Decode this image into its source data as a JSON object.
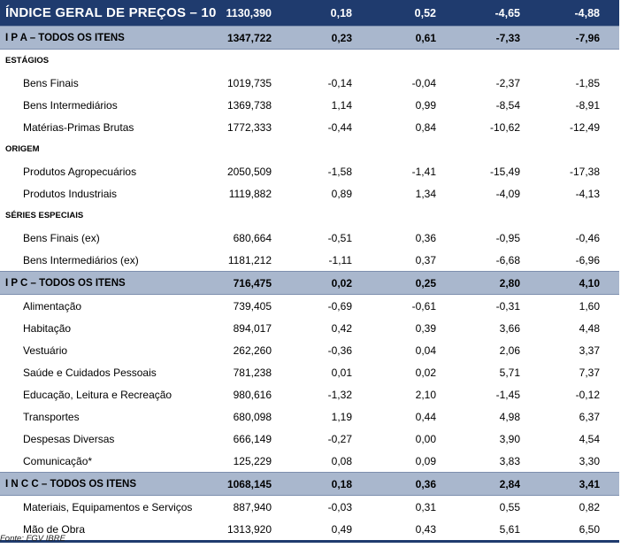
{
  "header": {
    "label": "ÍNDICE GERAL DE PREÇOS – 10",
    "values": [
      "1130,390",
      "0,18",
      "0,52",
      "-4,65",
      "-4,88"
    ]
  },
  "ipa": {
    "label": "I P A – TODOS OS ITENS",
    "values": [
      "1347,722",
      "0,23",
      "0,61",
      "-7,33",
      "-7,96"
    ],
    "estagios_label": "ESTÁGIOS",
    "estagios": [
      {
        "label": "Bens Finais",
        "values": [
          "1019,735",
          "-0,14",
          "-0,04",
          "-2,37",
          "-1,85"
        ]
      },
      {
        "label": "Bens Intermediários",
        "values": [
          "1369,738",
          "1,14",
          "0,99",
          "-8,54",
          "-8,91"
        ]
      },
      {
        "label": "Matérias-Primas Brutas",
        "values": [
          "1772,333",
          "-0,44",
          "0,84",
          "-10,62",
          "-12,49"
        ]
      }
    ],
    "origem_label": "ORIGEM",
    "origem": [
      {
        "label": "Produtos Agropecuários",
        "values": [
          "2050,509",
          "-1,58",
          "-1,41",
          "-15,49",
          "-17,38"
        ]
      },
      {
        "label": "Produtos Industriais",
        "values": [
          "1119,882",
          "0,89",
          "1,34",
          "-4,09",
          "-4,13"
        ]
      }
    ],
    "series_label": "SÉRIES ESPECIAIS",
    "series": [
      {
        "label": "Bens Finais (ex)",
        "values": [
          "680,664",
          "-0,51",
          "0,36",
          "-0,95",
          "-0,46"
        ]
      },
      {
        "label": "Bens Intermediários (ex)",
        "values": [
          "1181,212",
          "-1,11",
          "0,37",
          "-6,68",
          "-6,96"
        ]
      }
    ]
  },
  "ipc": {
    "label": "I P C – TODOS OS ITENS",
    "values": [
      "716,475",
      "0,02",
      "0,25",
      "2,80",
      "4,10"
    ],
    "items": [
      {
        "label": "Alimentação",
        "values": [
          "739,405",
          "-0,69",
          "-0,61",
          "-0,31",
          "1,60"
        ]
      },
      {
        "label": "Habitação",
        "values": [
          "894,017",
          "0,42",
          "0,39",
          "3,66",
          "4,48"
        ]
      },
      {
        "label": "Vestuário",
        "values": [
          "262,260",
          "-0,36",
          "0,04",
          "2,06",
          "3,37"
        ]
      },
      {
        "label": "Saúde e Cuidados Pessoais",
        "values": [
          "781,238",
          "0,01",
          "0,02",
          "5,71",
          "7,37"
        ]
      },
      {
        "label": "Educação, Leitura e Recreação",
        "values": [
          "980,616",
          "-1,32",
          "2,10",
          "-1,45",
          "-0,12"
        ]
      },
      {
        "label": "Transportes",
        "values": [
          "680,098",
          "1,19",
          "0,44",
          "4,98",
          "6,37"
        ]
      },
      {
        "label": "Despesas Diversas",
        "values": [
          "666,149",
          "-0,27",
          "0,00",
          "3,90",
          "4,54"
        ]
      },
      {
        "label": "Comunicação*",
        "values": [
          "125,229",
          "0,08",
          "0,09",
          "3,83",
          "3,30"
        ]
      }
    ]
  },
  "incc": {
    "label": "I N C C – TODOS OS ITENS",
    "values": [
      "1068,145",
      "0,18",
      "0,36",
      "2,84",
      "3,41"
    ],
    "items": [
      {
        "label": "Materiais, Equipamentos e Serviços",
        "values": [
          "887,940",
          "-0,03",
          "0,31",
          "0,55",
          "0,82"
        ]
      },
      {
        "label": "Mão de Obra",
        "values": [
          "1313,920",
          "0,49",
          "0,43",
          "5,61",
          "6,50"
        ]
      }
    ]
  },
  "source": "Fonte: FGV IBRE",
  "colors": {
    "header_bg": "#1f3b6e",
    "section_bg": "#a9b7cd"
  }
}
